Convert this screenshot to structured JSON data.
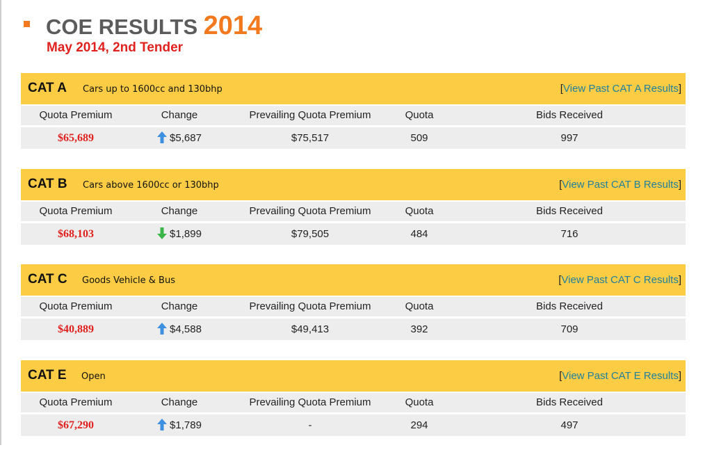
{
  "page": {
    "title_text": "COE RESULTS",
    "title_year": "2014",
    "subtitle": "May 2014, 2nd Tender"
  },
  "columns": [
    "Quota Premium",
    "Change",
    "Prevailing Quota Premium",
    "Quota",
    "Bids Received"
  ],
  "categories": [
    {
      "name": "CAT A",
      "description": "Cars up to 1600cc and 130bhp",
      "link_open": "[",
      "link_text": "View Past CAT A Results",
      "link_close": "]",
      "quota_premium": "$65,689",
      "change_direction": "up",
      "change": "$5,687",
      "prevailing_quota_premium": "$75,517",
      "quota": "509",
      "bids_received": "997"
    },
    {
      "name": "CAT B",
      "description": "Cars above 1600cc or 130bhp",
      "link_open": "[",
      "link_text": "View Past CAT B Results",
      "link_close": "]",
      "quota_premium": "$68,103",
      "change_direction": "down",
      "change": "$1,899",
      "prevailing_quota_premium": "$79,505",
      "quota": "484",
      "bids_received": "716"
    },
    {
      "name": "CAT C",
      "description": "Goods Vehicle & Bus",
      "link_open": "[",
      "link_text": "View Past CAT C Results",
      "link_close": "]",
      "quota_premium": "$40,889",
      "change_direction": "up",
      "change": "$4,588",
      "prevailing_quota_premium": "$49,413",
      "quota": "392",
      "bids_received": "709"
    },
    {
      "name": "CAT E",
      "description": "Open",
      "link_open": "[",
      "link_text": "View Past CAT E Results",
      "link_close": "]",
      "quota_premium": "$67,290",
      "change_direction": "up",
      "change": "$1,789",
      "prevailing_quota_premium": "-",
      "quota": "294",
      "bids_received": "497"
    }
  ],
  "colors": {
    "accent_orange": "#f2791e",
    "header_yellow": "#fccd44",
    "premium_red": "#e0211e",
    "arrow_up_blue": "#3d8fe0",
    "arrow_down_green": "#3bb54a",
    "link_teal": "#1f7f9e"
  }
}
